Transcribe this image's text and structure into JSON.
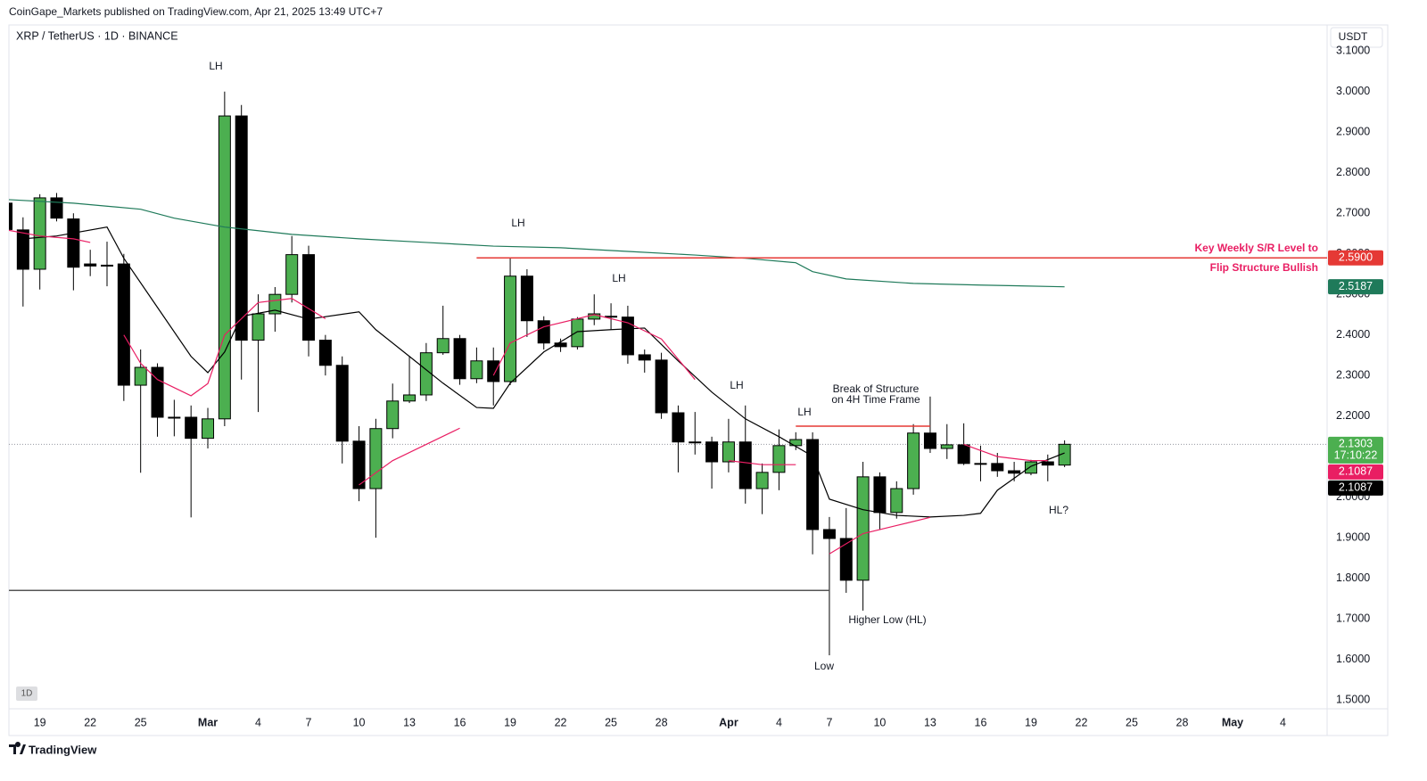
{
  "header": {
    "publisher": "CoinGape_Markets published on TradingView.com, Apr 21, 2025 13:49 UTC+7",
    "currency": "USDT",
    "interval_badge": "1D",
    "brand": "TradingView"
  },
  "chart_data": {
    "type": "candlestick",
    "title": "XRP / TetherUS · 1D · BINANCE",
    "x": [
      "Feb 17",
      "Feb 18",
      "Feb 19",
      "Feb 20",
      "Feb 21",
      "Feb 22",
      "Feb 23",
      "Feb 24",
      "Feb 25",
      "Feb 26",
      "Feb 27",
      "Feb 28",
      "Mar 1",
      "Mar 2",
      "Mar 3",
      "Mar 4",
      "Mar 5",
      "Mar 6",
      "Mar 7",
      "Mar 8",
      "Mar 9",
      "Mar 10",
      "Mar 11",
      "Mar 12",
      "Mar 13",
      "Mar 14",
      "Mar 15",
      "Mar 16",
      "Mar 17",
      "Mar 18",
      "Mar 19",
      "Mar 20",
      "Mar 21",
      "Mar 22",
      "Mar 23",
      "Mar 24",
      "Mar 25",
      "Mar 26",
      "Mar 27",
      "Mar 28",
      "Mar 29",
      "Mar 30",
      "Mar 31",
      "Apr 1",
      "Apr 2",
      "Apr 3",
      "Apr 4",
      "Apr 5",
      "Apr 6",
      "Apr 7",
      "Apr 8",
      "Apr 9",
      "Apr 10",
      "Apr 11",
      "Apr 12",
      "Apr 13",
      "Apr 14",
      "Apr 15",
      "Apr 16",
      "Apr 17",
      "Apr 18",
      "Apr 19",
      "Apr 20",
      "Apr 21"
    ],
    "open": [
      2.725,
      2.659,
      2.562,
      2.738,
      2.686,
      2.575,
      2.57,
      2.575,
      2.276,
      2.32,
      2.197,
      2.197,
      2.145,
      2.193,
      2.94,
      2.387,
      2.452,
      2.5,
      2.598,
      2.387,
      2.325,
      2.138,
      2.021,
      2.169,
      2.237,
      2.252,
      2.356,
      2.391,
      2.292,
      2.336,
      2.285,
      2.545,
      2.435,
      2.38,
      2.371,
      2.439,
      2.446,
      2.444,
      2.351,
      2.338,
      2.208,
      2.136,
      2.136,
      2.087,
      2.136,
      2.021,
      2.061,
      2.127,
      2.142,
      1.92,
      1.898,
      1.795,
      2.05,
      1.962,
      2.021,
      2.158,
      2.12,
      2.129,
      2.083,
      2.083,
      2.065,
      2.059,
      2.087,
      2.079
    ],
    "high": [
      2.73,
      2.69,
      2.747,
      2.75,
      2.7,
      2.61,
      2.63,
      2.6,
      2.364,
      2.33,
      2.24,
      2.226,
      2.22,
      3.0,
      2.967,
      2.5,
      2.518,
      2.644,
      2.62,
      2.4,
      2.347,
      2.175,
      2.193,
      2.28,
      2.347,
      2.38,
      2.472,
      2.4,
      2.369,
      2.369,
      2.589,
      2.562,
      2.446,
      2.391,
      2.444,
      2.5,
      2.478,
      2.472,
      2.364,
      2.356,
      2.226,
      2.21,
      2.149,
      2.193,
      2.226,
      2.083,
      2.167,
      2.16,
      2.16,
      1.951,
      1.973,
      2.087,
      2.061,
      2.039,
      2.18,
      2.248,
      2.18,
      2.182,
      2.127,
      2.109,
      2.087,
      2.092,
      2.105,
      2.14
    ],
    "low": [
      2.65,
      2.47,
      2.512,
      2.68,
      2.51,
      2.545,
      2.52,
      2.237,
      2.06,
      2.149,
      2.15,
      1.95,
      2.12,
      2.175,
      2.29,
      2.21,
      2.408,
      2.48,
      2.347,
      2.3,
      2.083,
      1.99,
      1.9,
      2.145,
      2.232,
      2.237,
      2.351,
      2.277,
      2.281,
      2.226,
      2.276,
      2.395,
      2.364,
      2.358,
      2.364,
      2.424,
      2.413,
      2.329,
      2.307,
      2.193,
      2.061,
      2.105,
      2.021,
      2.061,
      1.984,
      1.958,
      2.017,
      2.116,
      1.859,
      1.61,
      1.764,
      1.72,
      1.92,
      1.947,
      2.006,
      2.109,
      2.094,
      2.079,
      2.039,
      2.05,
      2.039,
      2.054,
      2.039,
      2.074
    ],
    "close": [
      2.66,
      2.562,
      2.738,
      2.688,
      2.567,
      2.57,
      2.572,
      2.276,
      2.32,
      2.197,
      2.196,
      2.145,
      2.193,
      2.94,
      2.387,
      2.452,
      2.5,
      2.598,
      2.387,
      2.325,
      2.138,
      2.021,
      2.169,
      2.237,
      2.252,
      2.356,
      2.391,
      2.292,
      2.336,
      2.285,
      2.545,
      2.435,
      2.38,
      2.371,
      2.439,
      2.452,
      2.444,
      2.351,
      2.338,
      2.208,
      2.136,
      2.134,
      2.087,
      2.136,
      2.021,
      2.061,
      2.127,
      2.142,
      1.92,
      1.898,
      1.795,
      2.05,
      1.962,
      2.021,
      2.158,
      2.12,
      2.129,
      2.083,
      2.081,
      2.065,
      2.059,
      2.087,
      2.079,
      2.1303
    ],
    "up_color": "#4caf50",
    "down_color": "#000000",
    "series": [
      {
        "color": "#1f7a5a",
        "x": [
          "Feb 17",
          "Feb 21",
          "Feb 25",
          "Feb 27",
          "Mar 2",
          "Mar 6",
          "Mar 10",
          "Mar 14",
          "Mar 18",
          "Mar 22",
          "Mar 26",
          "Mar 30",
          "Apr 2",
          "Apr 5",
          "Apr 6",
          "Apr 8",
          "Apr 12",
          "Apr 16",
          "Apr 21"
        ],
        "values": [
          2.734,
          2.725,
          2.71,
          2.688,
          2.666,
          2.648,
          2.637,
          2.628,
          2.619,
          2.615,
          2.606,
          2.597,
          2.589,
          2.578,
          2.556,
          2.538,
          2.527,
          2.523,
          2.5187
        ]
      },
      {
        "color": "#000000",
        "x": [
          "Feb 18",
          "Feb 20",
          "Feb 23",
          "Feb 24",
          "Feb 26",
          "Feb 28",
          "Mar 1",
          "Mar 2",
          "Mar 3",
          "Mar 5",
          "Mar 7",
          "Mar 10",
          "Mar 11",
          "Mar 13",
          "Mar 15",
          "Mar 17",
          "Mar 18",
          "Mar 19",
          "Mar 21",
          "Mar 23",
          "Mar 25",
          "Mar 27",
          "Mar 29",
          "Mar 31",
          "Apr 2",
          "Apr 4",
          "Apr 6",
          "Apr 7",
          "Apr 9",
          "Apr 11",
          "Apr 13",
          "Apr 15",
          "Apr 16",
          "Apr 17",
          "Apr 19",
          "Apr 21"
        ],
        "values": [
          2.637,
          2.644,
          2.666,
          2.589,
          2.468,
          2.347,
          2.307,
          2.358,
          2.446,
          2.461,
          2.439,
          2.457,
          2.413,
          2.347,
          2.281,
          2.221,
          2.219,
          2.281,
          2.358,
          2.408,
          2.413,
          2.417,
          2.336,
          2.259,
          2.193,
          2.149,
          2.101,
          1.995,
          1.969,
          1.955,
          1.951,
          1.955,
          1.96,
          2.017,
          2.076,
          2.109
        ]
      },
      {
        "color": "#e91e63",
        "x": [
          "Feb 17",
          "Feb 19",
          "Feb 21",
          "Feb 22",
          "Feb 23",
          "Feb 24",
          "Feb 25",
          "Feb 26",
          "Feb 28",
          "Mar 1",
          "Mar 2",
          "Mar 4",
          "Mar 6",
          "Mar 8",
          "Mar 9",
          "Mar 10",
          "Mar 12",
          "Mar 14",
          "Mar 16",
          "Mar 17",
          "Mar 18",
          "Mar 19",
          "Mar 21",
          "Mar 23",
          "Mar 24",
          "Mar 26",
          "Mar 28",
          "Mar 30",
          "Mar 31",
          "Apr 1",
          "Apr 3",
          "Apr 5",
          "Apr 6",
          "Apr 7",
          "Apr 9",
          "Apr 11",
          "Apr 13",
          "Apr 14",
          "Apr 15",
          "Apr 17",
          "Apr 19",
          "Apr 20"
        ],
        "values": [
          2.659,
          2.644,
          2.637,
          2.628,
          null,
          2.4,
          2.33,
          2.29,
          2.25,
          2.28,
          2.4,
          2.48,
          2.49,
          2.44,
          null,
          2.03,
          2.09,
          2.13,
          2.17,
          null,
          2.3,
          2.38,
          2.42,
          2.44,
          2.45,
          2.43,
          2.39,
          2.29,
          null,
          2.09,
          2.08,
          2.08,
          null,
          1.86,
          1.91,
          1.93,
          1.95,
          null,
          2.13,
          2.1,
          2.09,
          2.09
        ]
      }
    ],
    "hlines": [
      {
        "value": 2.59,
        "x": [
          "Mar 17",
          "May 7"
        ],
        "color": "#e53935"
      },
      {
        "value": 1.77,
        "x": [
          "Feb 17",
          "Apr 7"
        ],
        "color": "#555555"
      },
      {
        "value": 2.175,
        "x": [
          "Apr 5",
          "Apr 13"
        ],
        "color": "#e53935"
      }
    ],
    "price_labels": [
      {
        "value": 2.59,
        "label": "2.5900",
        "color": "#e53935"
      },
      {
        "value": 2.5187,
        "label": "2.5187",
        "color": "#1f7a5a"
      },
      {
        "value": 2.1303,
        "label": "2.1303",
        "sub": "17:10:22",
        "color": "#4caf50"
      },
      {
        "value": 2.1087,
        "label": "2.1087",
        "color": "#e91e63"
      },
      {
        "value": 2.1087,
        "label": "2.1087",
        "color": "#000000"
      }
    ],
    "annotations": [
      "LH",
      "LH",
      "LH",
      "LH",
      "LH",
      "Break of Structure",
      "on 4H Time Frame",
      "Key Weekly S/R Level to",
      "Flip Structure Bullish",
      "HL?",
      "Higher Low (HL)",
      "Low"
    ],
    "xlim": [
      "Feb 17",
      "May 7"
    ],
    "xticks": [
      {
        "value": "Feb 19",
        "label": "19"
      },
      {
        "value": "Feb 22",
        "label": "22"
      },
      {
        "value": "Feb 25",
        "label": "25"
      },
      {
        "value": "Mar 1",
        "label": "Mar"
      },
      {
        "value": "Mar 4",
        "label": "4"
      },
      {
        "value": "Mar 7",
        "label": "7"
      },
      {
        "value": "Mar 10",
        "label": "10"
      },
      {
        "value": "Mar 13",
        "label": "13"
      },
      {
        "value": "Mar 16",
        "label": "16"
      },
      {
        "value": "Mar 19",
        "label": "19"
      },
      {
        "value": "Mar 22",
        "label": "22"
      },
      {
        "value": "Mar 25",
        "label": "25"
      },
      {
        "value": "Mar 28",
        "label": "28"
      },
      {
        "value": "Apr 1",
        "label": "Apr"
      },
      {
        "value": "Apr 4",
        "label": "4"
      },
      {
        "value": "Apr 7",
        "label": "7"
      },
      {
        "value": "Apr 10",
        "label": "10"
      },
      {
        "value": "Apr 13",
        "label": "13"
      },
      {
        "value": "Apr 16",
        "label": "16"
      },
      {
        "value": "Apr 19",
        "label": "19"
      },
      {
        "value": "Apr 22",
        "label": "22"
      },
      {
        "value": "Apr 25",
        "label": "25"
      },
      {
        "value": "Apr 28",
        "label": "28"
      },
      {
        "value": "May 1",
        "label": "May"
      },
      {
        "value": "May 4",
        "label": "4"
      }
    ],
    "ylim": [
      1.478,
      3.16
    ],
    "yticks": [
      {
        "value": 1.5,
        "label": "1.5000"
      },
      {
        "value": 1.6,
        "label": "1.6000"
      },
      {
        "value": 1.7,
        "label": "1.7000"
      },
      {
        "value": 1.8,
        "label": "1.8000"
      },
      {
        "value": 1.9,
        "label": "1.9000"
      },
      {
        "value": 2.0,
        "label": "2.0000"
      },
      {
        "value": 2.1,
        "label": "2.1000"
      },
      {
        "value": 2.2,
        "label": "2.2000"
      },
      {
        "value": 2.3,
        "label": "2.3000"
      },
      {
        "value": 2.4,
        "label": "2.4000"
      },
      {
        "value": 2.5,
        "label": "2.5000"
      },
      {
        "value": 2.6,
        "label": "2.6000"
      },
      {
        "value": 2.7,
        "label": "2.7000"
      },
      {
        "value": 2.8,
        "label": "2.8000"
      },
      {
        "value": 2.9,
        "label": "2.9000"
      },
      {
        "value": 3.0,
        "label": "3.0000"
      },
      {
        "value": 3.1,
        "label": "3.1000"
      }
    ],
    "grid": false
  }
}
